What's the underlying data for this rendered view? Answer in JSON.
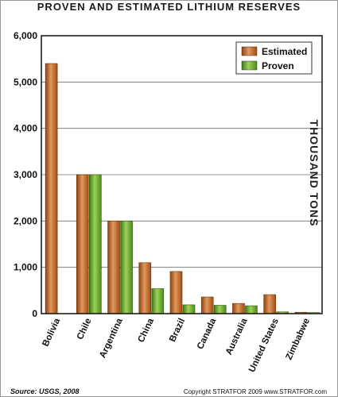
{
  "chart_data": {
    "type": "bar",
    "title": "PROVEN AND ESTIMATED LITHIUM RESERVES",
    "ylabel": "THOUSAND TONS",
    "ylim": [
      0,
      6000
    ],
    "yticks": [
      "0",
      "1,000",
      "2,000",
      "3,000",
      "4,000",
      "5,000",
      "6,000"
    ],
    "categories": [
      "Bolivia",
      "Chile",
      "Argentina",
      "China",
      "Brazil",
      "Canada",
      "Australia",
      "United States",
      "Zimbabwe"
    ],
    "series": [
      {
        "name": "Estimated",
        "color": "#c0611c",
        "values": [
          5400,
          3000,
          2000,
          1100,
          910,
          360,
          220,
          410,
          30
        ]
      },
      {
        "name": "Proven",
        "color": "#6aa52a",
        "values": [
          0,
          3000,
          2000,
          540,
          190,
          180,
          170,
          38,
          23
        ]
      }
    ],
    "legend": "top-right",
    "grid": true
  },
  "footer": {
    "source": "Source: USGS, 2008",
    "copyright": "Copyright STRATFOR 2009   www.STRATFOR.com"
  }
}
